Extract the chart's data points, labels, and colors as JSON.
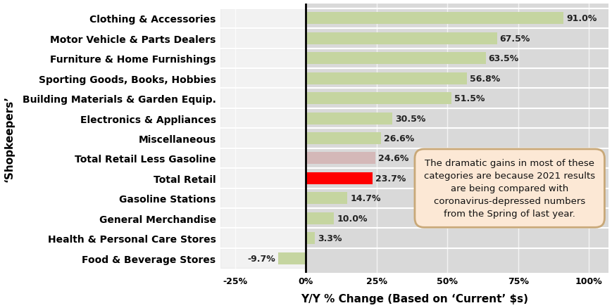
{
  "categories": [
    "Clothing & Accessories",
    "Motor Vehicle & Parts Dealers",
    "Furniture & Home Furnishings",
    "Sporting Goods, Books, Hobbies",
    "Building Materials & Garden Equip.",
    "Electronics & Appliances",
    "Miscellaneous",
    "Total Retail Less Gasoline",
    "Total Retail",
    "Gasoline Stations",
    "General Merchandise",
    "Health & Personal Care Stores",
    "Food & Beverage Stores"
  ],
  "values": [
    91.0,
    67.5,
    63.5,
    56.8,
    51.5,
    30.5,
    26.6,
    24.6,
    23.7,
    14.7,
    10.0,
    3.3,
    -9.7
  ],
  "bar_colors": [
    "#c5d5a0",
    "#c5d5a0",
    "#c5d5a0",
    "#c5d5a0",
    "#c5d5a0",
    "#c5d5a0",
    "#c5d5a0",
    "#d4b8b8",
    "#ff0000",
    "#c5d5a0",
    "#c5d5a0",
    "#c5d5a0",
    "#c5d5a0"
  ],
  "xlabel": "Y/Y % Change (Based on ‘Current’ $s)",
  "ylabel": "‘Shopkeepers’",
  "xlim": [
    -30,
    107
  ],
  "xticks": [
    -25,
    0,
    25,
    50,
    75,
    100
  ],
  "xtick_labels": [
    "-25%",
    "0%",
    "25%",
    "50%",
    "75%",
    "100%"
  ],
  "annotation_text": "The dramatic gains in most of these\ncategories are because 2021 results\nare being compared with\ncoronavirus-depressed numbers\nfrom the Spring of last year.",
  "annotation_box_color": "#fce8d5",
  "annotation_box_edge": "#c8a878",
  "chart_bg_color": "#d9d9d9",
  "fig_bg_color": "#ffffff",
  "bar_row_bg_light": "#f2f2f2",
  "bar_row_bg_dark": "#e0e0e0"
}
